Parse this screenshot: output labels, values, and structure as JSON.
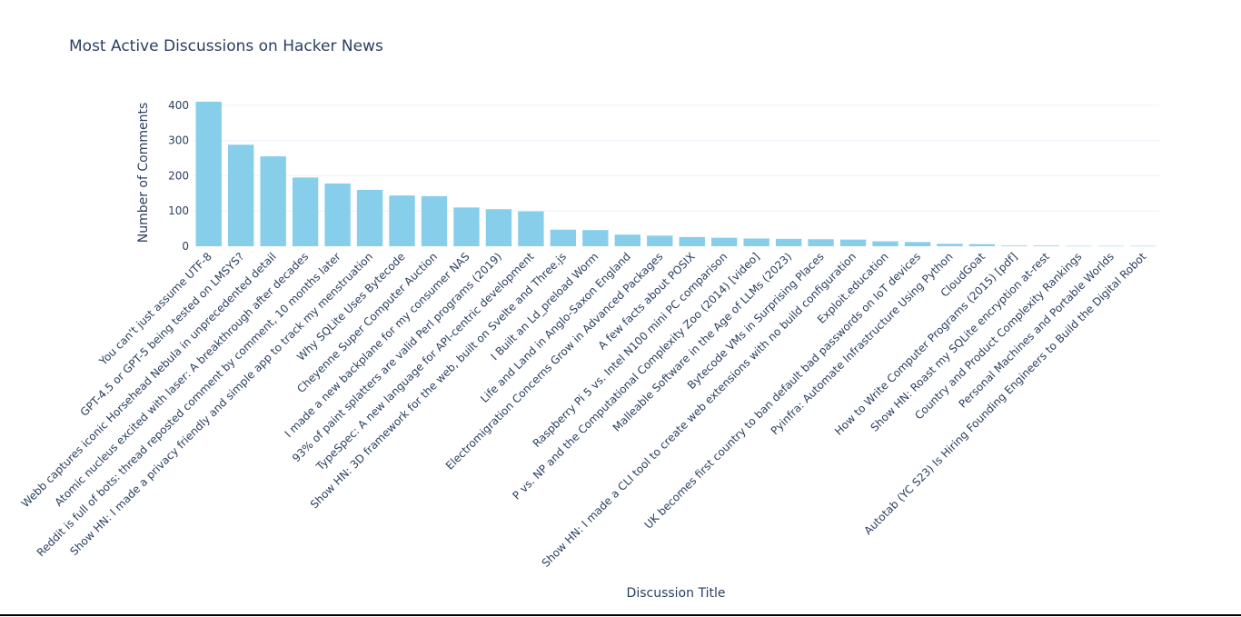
{
  "chart_data": {
    "type": "bar",
    "title": "Most Active Discussions on Hacker News",
    "xlabel": "Discussion Title",
    "ylabel": "Number of Comments",
    "ylim": [
      0,
      415
    ],
    "yticks": [
      0,
      100,
      200,
      300,
      400
    ],
    "bar_color": "#87ceeb",
    "categories": [
      "You can't just assume UTF-8",
      "GPT-4.5 or GPT-5 being tested on LMSYS?",
      "Webb captures iconic Horsehead Nebula in unprecedented detail",
      "Atomic nucleus excited with laser: A breakthrough after decades",
      "Reddit is full of bots: thread reposted comment by comment, 10 months later",
      "Show HN: I made a privacy friendly and simple app to track my menstruation",
      "Why SQLite Uses Bytecode",
      "Cheyenne Super Computer Auction",
      "I made a new backplane for my consumer NAS",
      "93% of paint splatters are valid Perl programs (2019)",
      "TypeSpec: A new language for API-centric development",
      "Show HN: 3D framework for the web, built on Svelte and Three.js",
      "I Built an Ld_preload Worm",
      "Life and Land in Anglo-Saxon England",
      "Electromigration Concerns Grow in Advanced Packages",
      "A few facts about POSIX",
      "Raspberry Pi 5 vs. Intel N100 mini PC comparison",
      "P vs. NP and the Computational Complexity Zoo (2014) [video]",
      "Malleable Software in the Age of LLMs (2023)",
      "Bytecode VMs in Surprising Places",
      "Show HN: I made a CLI tool to create web extensions with no build configuration",
      "Exploit.education",
      "UK becomes first country to ban default bad passwords on IoT devices",
      "Pyinfra: Automate Infrastructure Using Python",
      "CloudGoat",
      "How to Write Computer Programs (2015) [pdf]",
      "Show HN: Roast my SQLite encryption at-rest",
      "Country and Product Complexity Rankings",
      "Personal Machines and Portable Worlds",
      "Autotab (YC S23) Is Hiring Founding Engineers to Build the Digital Robot"
    ],
    "values": [
      410,
      288,
      255,
      195,
      178,
      160,
      144,
      142,
      110,
      105,
      99,
      47,
      46,
      33,
      30,
      26,
      24,
      22,
      21,
      20,
      19,
      14,
      12,
      7,
      6,
      2,
      2,
      1,
      1,
      1
    ]
  }
}
